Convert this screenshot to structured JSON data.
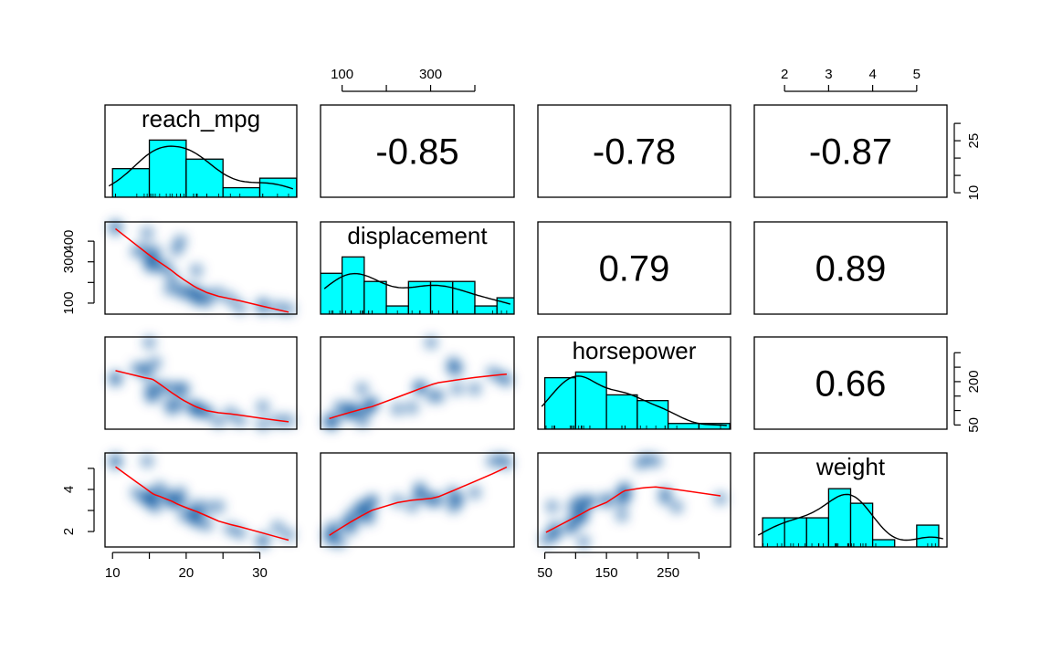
{
  "chart_data": {
    "type": "scatter-matrix",
    "variables": [
      "reach_mpg",
      "displacement",
      "horsepower",
      "weight"
    ],
    "correlations": [
      {
        "row": 0,
        "col": 1,
        "label": "-0.85"
      },
      {
        "row": 0,
        "col": 2,
        "label": "-0.78"
      },
      {
        "row": 0,
        "col": 3,
        "label": "-0.87"
      },
      {
        "row": 1,
        "col": 2,
        "label": "0.79"
      },
      {
        "row": 1,
        "col": 3,
        "label": "0.89"
      },
      {
        "row": 2,
        "col": 3,
        "label": "0.66"
      }
    ],
    "ranges": {
      "reach_mpg": [
        9.5,
        34.5
      ],
      "displacement": [
        60,
        480
      ],
      "horsepower": [
        45,
        345
      ],
      "weight": [
        1.4,
        5.6
      ]
    },
    "axes": {
      "top": [
        {
          "var": 1,
          "ticks": [
            100,
            200,
            300,
            400
          ],
          "labels": [
            "100",
            "",
            "300",
            ""
          ]
        },
        {
          "var": 3,
          "ticks": [
            2,
            3,
            4,
            5
          ],
          "labels": [
            "2",
            "3",
            "4",
            "5"
          ]
        }
      ],
      "bottom": [
        {
          "var": 0,
          "ticks": [
            10,
            15,
            20,
            25,
            30
          ],
          "labels": [
            "10",
            "",
            "20",
            "",
            "30"
          ]
        },
        {
          "var": 2,
          "ticks": [
            50,
            100,
            150,
            200,
            250,
            300
          ],
          "labels": [
            "50",
            "",
            "150",
            "",
            "250",
            ""
          ]
        }
      ],
      "left": [
        {
          "var": 1,
          "ticks": [
            100,
            200,
            300,
            400
          ],
          "labels": [
            "100",
            "",
            "300",
            "400"
          ]
        },
        {
          "var": 3,
          "ticks": [
            2,
            3,
            4,
            5
          ],
          "labels": [
            "2",
            "",
            "4",
            ""
          ]
        }
      ],
      "right": [
        {
          "var": 0,
          "ticks": [
            10,
            15,
            20,
            25,
            30
          ],
          "labels": [
            "10",
            "",
            "",
            "25",
            ""
          ]
        },
        {
          "var": 2,
          "ticks": [
            50,
            100,
            150,
            200,
            250,
            300
          ],
          "labels": [
            "50",
            "",
            "",
            "200",
            "",
            ""
          ]
        }
      ]
    },
    "histograms": [
      {
        "var": "reach_mpg",
        "breaks": [
          10,
          15,
          20,
          25,
          30,
          35
        ],
        "counts": [
          6,
          12,
          8,
          2,
          4
        ]
      },
      {
        "var": "displacement",
        "breaks": [
          50,
          100,
          150,
          200,
          250,
          300,
          350,
          400,
          450,
          500
        ],
        "counts": [
          5,
          7,
          4,
          1,
          4,
          4,
          4,
          1,
          2
        ]
      },
      {
        "var": "horsepower",
        "breaks": [
          50,
          100,
          150,
          200,
          250,
          300,
          350
        ],
        "counts": [
          9,
          10,
          6,
          5,
          1,
          1
        ]
      },
      {
        "var": "weight",
        "breaks": [
          1.5,
          2,
          2.5,
          3,
          3.5,
          4,
          4.5,
          5,
          5.5
        ],
        "counts": [
          4,
          4,
          4,
          8,
          6,
          1,
          0,
          3
        ]
      }
    ],
    "scatter": {
      "reach_mpg": [
        21,
        21,
        22.8,
        21.4,
        18.7,
        18.1,
        14.3,
        24.4,
        22.8,
        19.2,
        17.8,
        16.4,
        17.3,
        15.2,
        10.4,
        10.4,
        14.7,
        32.4,
        30.4,
        33.9,
        21.5,
        15.5,
        15.2,
        13.3,
        19.2,
        27.3,
        26,
        30.4,
        15.8,
        19.7,
        15,
        21.4
      ],
      "displacement": [
        160,
        160,
        108,
        258,
        360,
        225,
        360,
        146.7,
        140.8,
        167.6,
        167.6,
        275.8,
        275.8,
        275.8,
        472,
        460,
        440,
        78.7,
        75.7,
        71.1,
        120.1,
        318,
        304,
        350,
        400,
        79,
        120.3,
        95.1,
        351,
        145,
        301,
        121
      ],
      "horsepower": [
        110,
        110,
        93,
        110,
        175,
        105,
        245,
        62,
        95,
        123,
        123,
        180,
        180,
        180,
        205,
        215,
        230,
        66,
        52,
        65,
        97,
        150,
        150,
        245,
        175,
        66,
        91,
        113,
        264,
        175,
        335,
        109
      ],
      "weight": [
        2.62,
        2.875,
        2.32,
        3.215,
        3.44,
        3.46,
        3.57,
        3.19,
        3.15,
        3.44,
        3.44,
        4.07,
        3.73,
        3.78,
        5.25,
        5.424,
        5.345,
        2.2,
        1.615,
        1.835,
        2.465,
        3.52,
        3.435,
        3.84,
        3.845,
        1.935,
        2.14,
        1.513,
        3.17,
        2.77,
        3.57,
        2.78
      ]
    },
    "colors": {
      "histogram_fill": "#00ffff",
      "density_line": "#000000",
      "smooth_line": "#ff0000",
      "point_cloud": "#08519c"
    }
  }
}
